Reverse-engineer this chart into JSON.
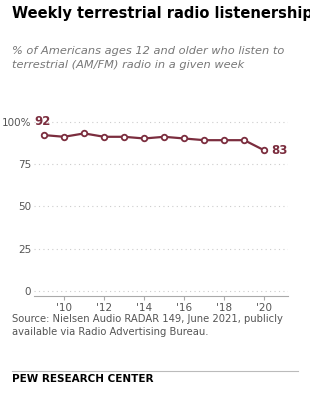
{
  "title": "Weekly terrestrial radio listenership",
  "subtitle": "% of Americans ages 12 and older who listen to\nterrestrial (AM/FM) radio in a given week",
  "source": "Source: Nielsen Audio RADAR 149, June 2021, publicly\navailable via Radio Advertising Bureau.",
  "footer": "PEW RESEARCH CENTER",
  "years": [
    2009,
    2010,
    2011,
    2012,
    2013,
    2014,
    2015,
    2016,
    2017,
    2018,
    2019,
    2020
  ],
  "values": [
    92,
    91,
    93,
    91,
    91,
    90,
    91,
    90,
    89,
    89,
    89,
    83
  ],
  "line_color": "#7b2d3e",
  "marker_face": "#ffffff",
  "marker_edge": "#7b2d3e",
  "label_first": "92",
  "label_last": "83",
  "yticks": [
    0,
    25,
    50,
    75,
    100
  ],
  "ytick_labels": [
    "0",
    "25",
    "50",
    "75",
    "100%"
  ],
  "xtick_labels": [
    "'10",
    "'12",
    "'14",
    "'16",
    "'18",
    "'20"
  ],
  "xtick_positions": [
    2010,
    2012,
    2014,
    2016,
    2018,
    2020
  ],
  "ylim": [
    -3,
    108
  ],
  "xlim": [
    2008.5,
    2021.2
  ],
  "background_color": "#ffffff",
  "grid_color": "#cccccc",
  "title_fontsize": 10.5,
  "subtitle_fontsize": 8.2,
  "axis_fontsize": 7.5,
  "label_fontsize": 8.5,
  "source_fontsize": 7.2,
  "footer_fontsize": 7.5
}
